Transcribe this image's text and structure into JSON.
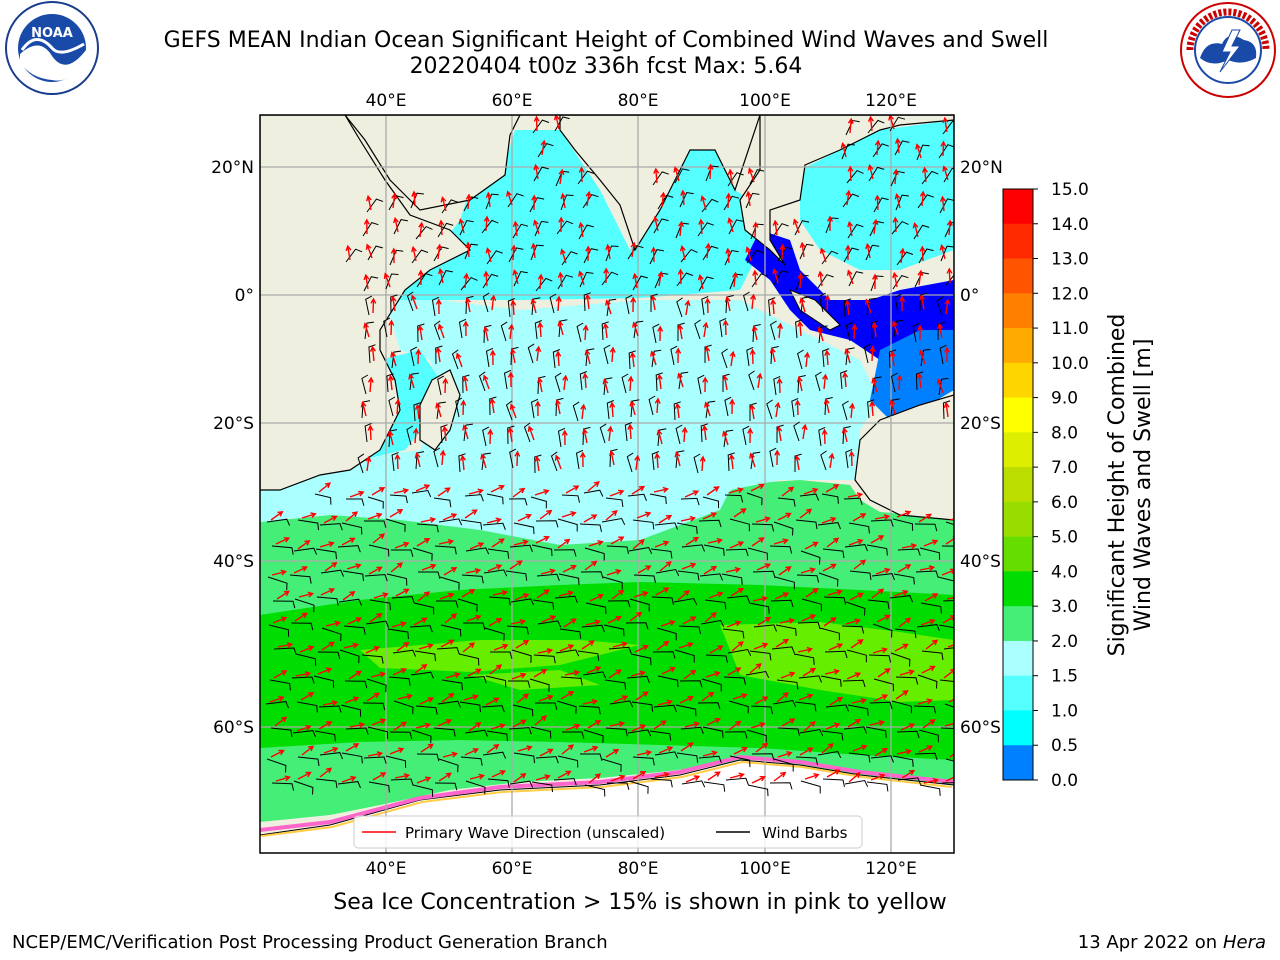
{
  "title_line1": "GEFS MEAN Indian Ocean Significant Height of Combined Wind Waves and Swell",
  "title_line2": "20220404 t00z 336h fcst   Max: 5.64",
  "map": {
    "lon_ticks": [
      "40°E",
      "60°E",
      "80°E",
      "100°E",
      "120°E"
    ],
    "lat_ticks": [
      "20°N",
      "0°",
      "20°S",
      "40°S",
      "60°S"
    ],
    "lon_values": [
      40,
      60,
      80,
      100,
      120
    ],
    "lat_values": [
      20,
      0,
      -20,
      -40,
      -60
    ],
    "extent": {
      "lon_min": 20,
      "lon_max": 130,
      "lat_min": -73,
      "lat_max": 28
    },
    "land_color": "#efefdf",
    "legend": {
      "primary_wave": "Primary Wave Direction (unscaled)",
      "wind_barbs": "Wind Barbs"
    }
  },
  "colorbar": {
    "label_line1": "Significant Height of Combined",
    "label_line2": "Wind Waves and Swell [m]",
    "ticks": [
      "15.0",
      "14.0",
      "13.0",
      "12.0",
      "11.0",
      "10.0",
      "9.0",
      "8.0",
      "7.0",
      "6.0",
      "5.0",
      "4.0",
      "3.0",
      "2.0",
      "1.5",
      "1.0",
      "0.5",
      "0.0"
    ],
    "colors": [
      "#ff0000",
      "#ff2a00",
      "#ff5500",
      "#ff8000",
      "#ffaa00",
      "#ffd500",
      "#ffff00",
      "#ddee00",
      "#bbdd00",
      "#99dd00",
      "#66dd00",
      "#00dd00",
      "#44ee77",
      "#aaffff",
      "#55ffff",
      "#00ffff",
      "#0080ff",
      "#0000ff"
    ]
  },
  "caption": "Sea Ice Concentration > 15% is shown in pink to yellow",
  "footer_left": "NCEP/EMC/Verification Post Processing Product Generation Branch",
  "footer_right_date": "13 Apr 2022 on ",
  "footer_right_host": "Hera",
  "logos": {
    "left": "noaa-logo",
    "right": "nws-logo",
    "noaa_text": "NOAA",
    "nws_text": "NATIONAL WEATHER SERVICE"
  }
}
